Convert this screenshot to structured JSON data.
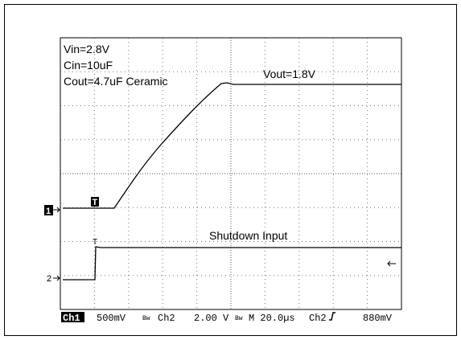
{
  "annotations": [
    "Vin=2.8V",
    "Cin=10uF",
    "Cout=4.7uF Ceramic"
  ],
  "trace_labels": {
    "ch1": "Vout=1.8V",
    "ch2": "Shutdown Input"
  },
  "markers": {
    "ch1": "1",
    "ch2": "2",
    "trigger": "T"
  },
  "status_bar": {
    "channel1": "Ch1",
    "ch1_scale": "500mV",
    "channel2": "Ch2",
    "ch2_scale": "2.00 V",
    "timebase": "M 20.0µs",
    "trigger_source": "Ch2",
    "trigger_level": "880mV"
  }
}
